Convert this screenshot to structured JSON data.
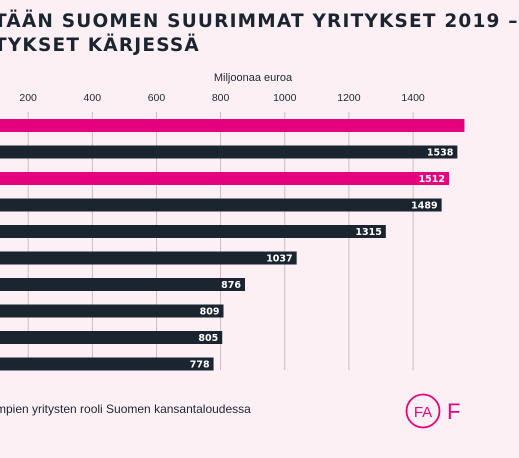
{
  "title": {
    "line1": "TÄÄN SUOMEN SUURIMMAT YRITYKSET 2019 –",
    "line2": "TYKSET KÄRJESSÄ"
  },
  "footer_text": "mpien yritysten rooli Suomen kansantaloudessa",
  "logo": {
    "letters": "FA",
    "trailing": "F",
    "icon": "fa-circle-logo",
    "color": "#e5007e"
  },
  "colors": {
    "highlight": "#e5007e",
    "bar": "#1b2530",
    "background": "#fdf0f4",
    "grid": "#b9b3b9"
  },
  "chart_data": {
    "type": "bar",
    "orientation": "horizontal",
    "xlabel": "Miljoonaa euroa",
    "xticks": [
      200,
      400,
      600,
      800,
      1000,
      1200,
      1400
    ],
    "xlim": [
      0,
      1540
    ],
    "grid": true,
    "bars": [
      {
        "value": 1560,
        "label": "",
        "highlight": true
      },
      {
        "value": 1538,
        "label": "1538",
        "highlight": false
      },
      {
        "value": 1512,
        "label": "1512",
        "highlight": true
      },
      {
        "value": 1489,
        "label": "1489",
        "highlight": false
      },
      {
        "value": 1315,
        "label": "1315",
        "highlight": false
      },
      {
        "value": 1037,
        "label": "1037",
        "highlight": false
      },
      {
        "value": 876,
        "label": "876",
        "highlight": false
      },
      {
        "value": 809,
        "label": "809",
        "highlight": false
      },
      {
        "value": 805,
        "label": "805",
        "highlight": false
      },
      {
        "value": 778,
        "label": "778",
        "highlight": false
      }
    ]
  }
}
